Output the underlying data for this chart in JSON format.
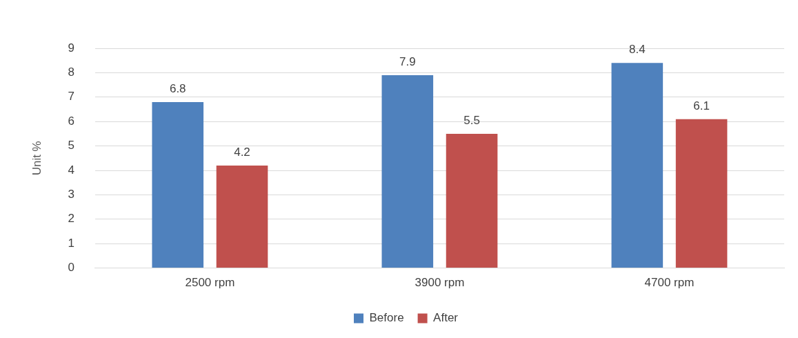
{
  "chart_data": {
    "type": "bar",
    "ylabel": "Unit %",
    "categories": [
      "2500 rpm",
      "3900 rpm",
      "4700 rpm"
    ],
    "series": [
      {
        "name": "Before",
        "color": "#4f81bd",
        "values": [
          6.8,
          7.9,
          8.4
        ]
      },
      {
        "name": "After",
        "color": "#c0504d",
        "values": [
          4.2,
          5.5,
          6.1
        ]
      }
    ],
    "ylim": [
      0,
      9
    ],
    "yticks": [
      0,
      1,
      2,
      3,
      4,
      5,
      6,
      7,
      8,
      9
    ],
    "grid": "y",
    "legend": "bottom",
    "data_labels": true
  }
}
